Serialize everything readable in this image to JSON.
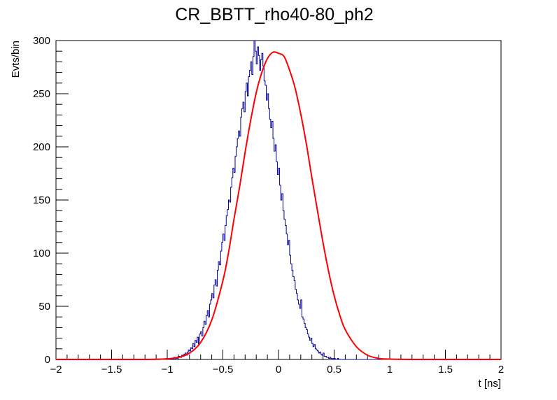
{
  "chart_data": {
    "type": "line",
    "title": "CR_BBTT_rho40-80_ph2",
    "xlabel": "t [ns]",
    "ylabel": "Evts/bin",
    "xlim": [
      -2,
      2
    ],
    "ylim": [
      0,
      300
    ],
    "x_ticks": [
      -2,
      -1.5,
      -1,
      -0.5,
      0,
      0.5,
      1,
      1.5,
      2
    ],
    "x_tick_labels": [
      "−2",
      "−1.5",
      "−1",
      "−0.5",
      "0",
      "0.5",
      "1",
      "1.5",
      "2"
    ],
    "y_ticks": [
      0,
      50,
      100,
      150,
      200,
      250,
      300
    ],
    "y_tick_labels": [
      "0",
      "50",
      "100",
      "150",
      "200",
      "250",
      "300"
    ],
    "grid": false,
    "legend": "none",
    "series": [
      {
        "kind": "histogram",
        "color": "#000099",
        "bin_edges_range": [
          -2,
          2
        ],
        "bin_width": 0.01,
        "values": [
          0,
          0,
          0,
          0,
          0,
          0,
          0,
          0,
          0,
          0,
          0,
          0,
          0,
          0,
          0,
          0,
          0,
          0,
          0,
          0,
          0,
          0,
          0,
          0,
          0,
          0,
          0,
          0,
          0,
          0,
          0,
          0,
          0,
          0,
          0,
          0,
          0,
          0,
          0,
          0,
          0,
          0,
          0,
          0,
          0,
          0,
          0,
          0,
          0,
          0,
          0,
          0,
          0,
          0,
          0,
          0,
          0,
          0,
          0,
          0,
          0,
          0,
          0,
          0,
          0,
          0,
          0,
          0,
          0,
          0,
          0,
          0,
          0,
          0,
          0,
          0,
          0,
          0,
          0,
          0,
          0,
          0,
          0,
          0,
          0,
          0,
          0,
          0,
          0,
          0,
          0,
          0,
          0,
          0,
          0,
          0,
          0,
          0,
          0,
          1,
          0,
          0,
          0,
          1,
          1,
          0,
          2,
          0,
          1,
          2,
          3,
          2,
          2,
          4,
          3,
          5,
          6,
          4,
          7,
          9,
          8,
          11,
          10,
          15,
          12,
          18,
          16,
          21,
          14,
          24,
          26,
          22,
          30,
          36,
          33,
          41,
          46,
          40,
          52,
          56,
          62,
          58,
          70,
          75,
          69,
          84,
          92,
          89,
          102,
          110,
          118,
          112,
          126,
          135,
          141,
          150,
          148,
          162,
          171,
          180,
          176,
          191,
          200,
          208,
          215,
          210,
          228,
          236,
          242,
          233,
          252,
          260,
          248,
          266,
          272,
          280,
          268,
          285,
          300,
          290,
          278,
          294,
          286,
          272,
          282,
          288,
          276,
          262,
          258,
          244,
          250,
          236,
          226,
          218,
          224,
          208,
          196,
          202,
          186,
          174,
          180,
          164,
          150,
          156,
          140,
          132,
          126,
          118,
          108,
          112,
          98,
          90,
          84,
          78,
          74,
          66,
          62,
          56,
          52,
          48,
          56,
          40,
          38,
          34,
          30,
          28,
          24,
          21,
          18,
          20,
          15,
          12,
          14,
          10,
          9,
          8,
          6,
          7,
          5,
          4,
          6,
          3,
          3,
          2,
          2,
          1,
          2,
          1,
          0,
          1,
          1,
          0,
          0,
          1,
          0,
          0,
          0,
          0,
          0,
          0,
          0,
          0,
          0,
          0,
          0,
          0,
          0,
          0,
          0,
          0,
          0,
          0,
          0,
          0,
          0,
          0,
          0,
          0,
          0,
          0,
          0,
          0,
          0,
          0,
          0,
          0,
          0,
          0,
          0,
          0,
          0,
          0,
          0,
          0,
          0,
          0,
          0,
          0,
          0,
          0,
          0,
          0,
          0,
          0,
          0,
          0,
          0,
          0,
          0,
          0,
          0,
          0,
          0,
          0,
          0,
          0,
          0,
          0,
          0,
          0,
          0,
          0,
          0,
          0,
          0,
          0,
          0,
          0,
          0,
          0,
          0,
          0,
          0,
          0,
          0,
          0,
          0,
          0,
          0,
          0,
          0,
          0,
          0,
          0,
          0,
          0,
          0,
          0,
          0,
          0,
          0,
          0,
          0,
          0,
          0,
          0,
          0,
          0,
          0,
          0,
          0,
          0,
          0,
          0,
          0,
          0,
          0,
          0,
          0,
          0,
          0,
          0,
          0,
          0,
          0,
          0,
          0,
          0,
          0,
          0,
          0,
          0,
          0,
          0,
          0,
          0,
          0,
          0,
          0,
          0
        ]
      },
      {
        "kind": "fit",
        "color": "#ff0000",
        "x": [
          -2,
          -1.5,
          -1.2,
          -1,
          -0.9,
          -0.8,
          -0.7,
          -0.6,
          -0.5,
          -0.45,
          -0.4,
          -0.35,
          -0.3,
          -0.25,
          -0.2,
          -0.15,
          -0.1,
          -0.05,
          0,
          0.05,
          0.1,
          0.15,
          0.2,
          0.25,
          0.3,
          0.35,
          0.4,
          0.45,
          0.5,
          0.55,
          0.6,
          0.7,
          0.8,
          0.9,
          1,
          1.2,
          1.5,
          2
        ],
        "y": [
          0,
          0,
          0,
          0.6,
          2,
          6,
          16,
          37,
          74,
          100,
          132,
          162,
          195,
          225,
          251,
          270,
          283,
          289,
          288,
          285,
          272,
          255,
          231,
          203,
          171,
          140,
          110,
          83,
          60,
          42,
          28,
          12,
          4,
          1,
          0.3,
          0,
          0,
          0
        ]
      }
    ]
  }
}
